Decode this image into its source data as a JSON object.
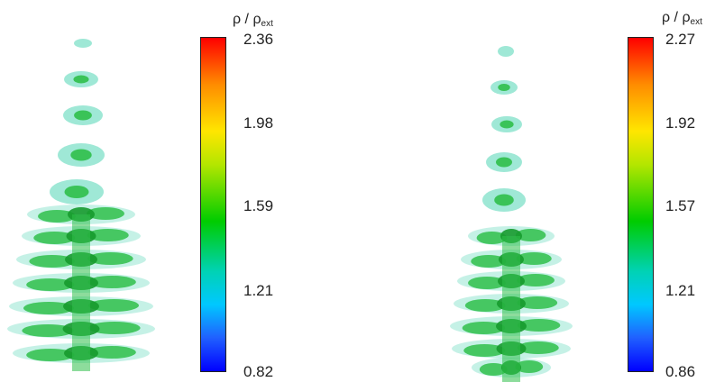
{
  "plots": [
    {
      "colorbar": {
        "title": "ρ / ρ",
        "title_sub": "ext",
        "ticks": [
          "2.36",
          "1.98",
          "1.59",
          "1.21",
          "0.82"
        ],
        "colors": [
          "#ff0000",
          "#ffe600",
          "#00cc00",
          "#00c8ff",
          "#0000ff"
        ]
      }
    },
    {
      "colorbar": {
        "title": "ρ / ρ",
        "title_sub": "ext",
        "ticks": [
          "2.27",
          "1.92",
          "1.57",
          "1.21",
          "0.86"
        ],
        "colors": [
          "#ff0000",
          "#ffe600",
          "#00cc00",
          "#00c8ff",
          "#0000ff"
        ]
      }
    }
  ],
  "isosurface_colors": {
    "outer": "#7fe0c8",
    "inner": "#2fbf4a",
    "core": "#169a2e"
  }
}
